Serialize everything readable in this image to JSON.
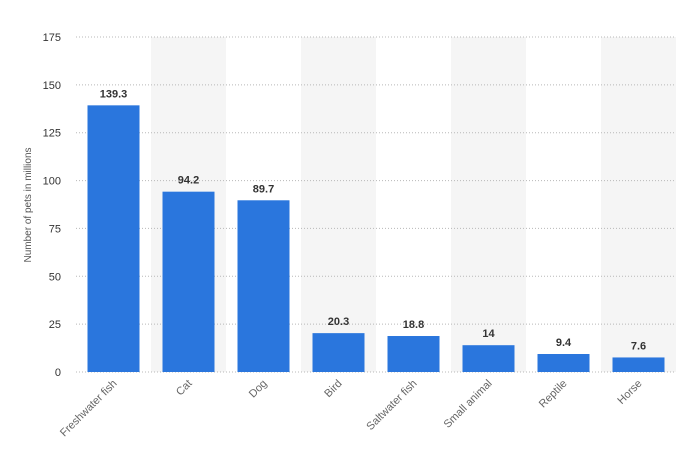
{
  "chart_data": {
    "type": "bar",
    "categories": [
      "Freshwater fish",
      "Cat",
      "Dog",
      "Bird",
      "Saltwater fish",
      "Small animal",
      "Reptile",
      "Horse"
    ],
    "values": [
      139.3,
      94.2,
      89.7,
      20.3,
      18.8,
      14,
      9.4,
      7.6
    ],
    "data_labels": [
      "139.3",
      "94.2",
      "89.7",
      "20.3",
      "18.8",
      "14",
      "9.4",
      "7.6"
    ],
    "ylabel": "Number of pets in millions",
    "ylim": [
      0,
      175
    ],
    "yticks": [
      "0",
      "25",
      "50",
      "75",
      "100",
      "125",
      "150",
      "175"
    ],
    "grid": true,
    "legend": "none",
    "bar_color": "#2a76dd",
    "band_color": "#f5f5f5"
  }
}
